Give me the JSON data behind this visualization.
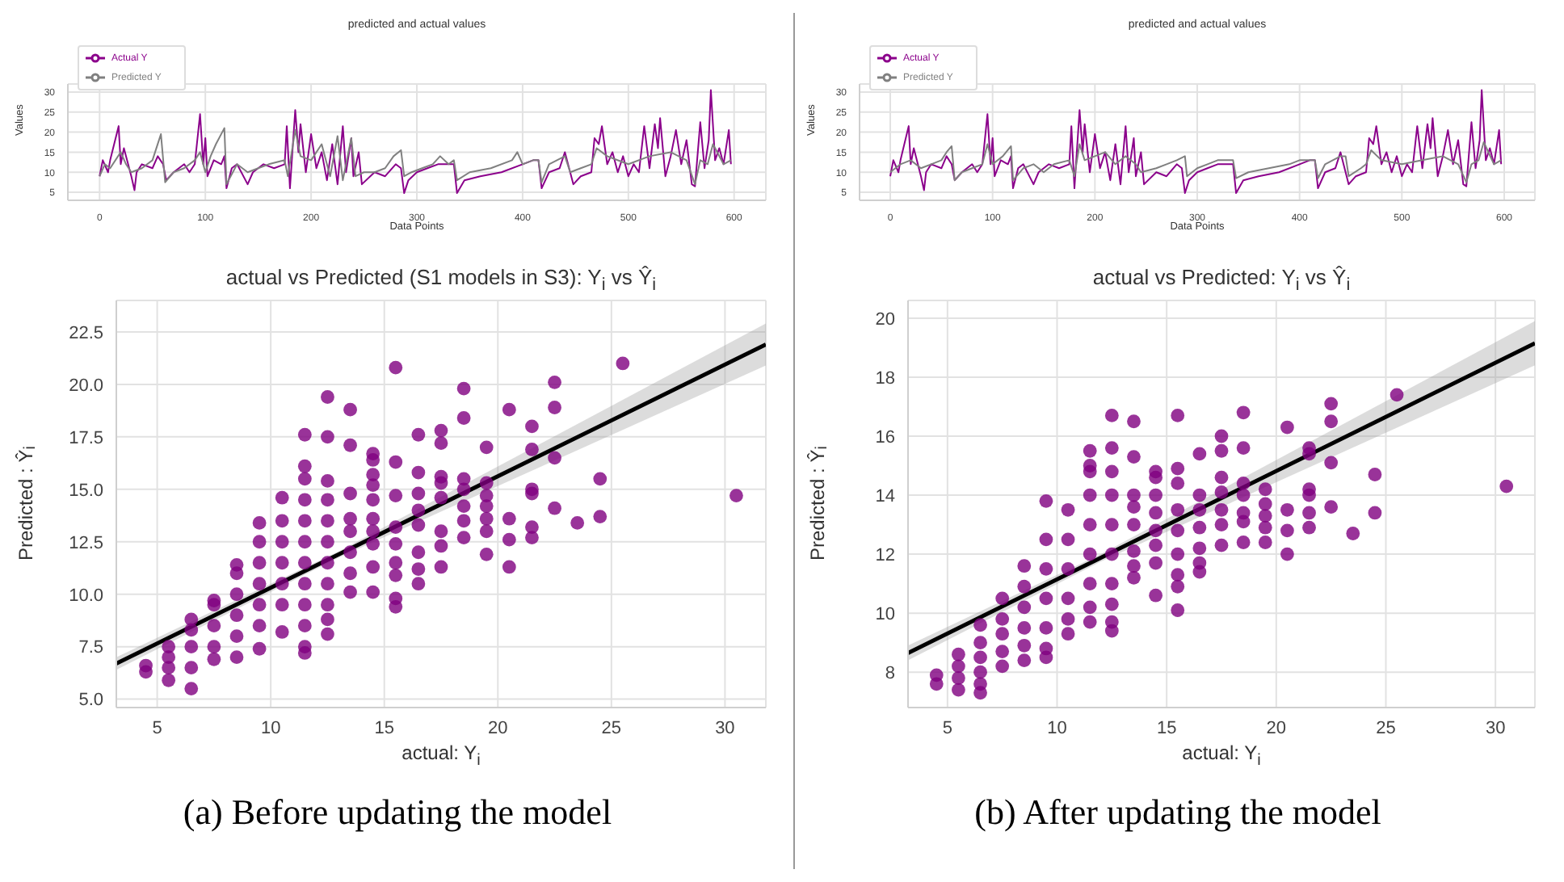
{
  "chart_data": [
    {
      "type": "line",
      "title": "predicted and actual values",
      "xlabel": "Data Points",
      "ylabel": "Values",
      "xlim": [
        -30,
        630
      ],
      "ylim": [
        3,
        32
      ],
      "xticks": [
        0,
        100,
        200,
        300,
        400,
        500,
        600
      ],
      "yticks": [
        5,
        10,
        15,
        20,
        25,
        30
      ],
      "grid": true,
      "legend": "top left",
      "series": [
        {
          "name": "Actual Y",
          "color": "#8b008b",
          "x": [
            0,
            3,
            8,
            10,
            18,
            20,
            23,
            30,
            33,
            35,
            40,
            50,
            55,
            60,
            63,
            70,
            80,
            85,
            90,
            95,
            98,
            100,
            102,
            108,
            115,
            118,
            120,
            125,
            130,
            140,
            145,
            155,
            165,
            175,
            177,
            180,
            185,
            188,
            190,
            195,
            200,
            205,
            210,
            215,
            220,
            225,
            230,
            233,
            238,
            240,
            245,
            248,
            260,
            270,
            280,
            285,
            288,
            292,
            300,
            310,
            320,
            330,
            335,
            338,
            345,
            360,
            380,
            400,
            410,
            415,
            418,
            425,
            435,
            440,
            448,
            455,
            465,
            468,
            472,
            475,
            480,
            485,
            490,
            495,
            500,
            505,
            510,
            515,
            520,
            525,
            528,
            530,
            535,
            540,
            545,
            550,
            555,
            560,
            563,
            568,
            572,
            576,
            578,
            582,
            586,
            590,
            595,
            597
          ],
          "values": [
            9,
            13,
            10,
            13,
            21.5,
            12,
            16,
            9,
            5.5,
            10,
            12,
            11,
            14,
            12,
            8,
            10,
            12,
            10,
            12,
            24.5,
            12,
            18.5,
            9,
            13,
            12,
            14,
            6,
            11,
            12,
            7,
            10,
            12,
            11,
            12,
            21.5,
            6,
            25.5,
            15,
            22,
            10,
            19.5,
            11,
            15,
            8,
            17,
            7,
            21.5,
            10,
            18.5,
            9,
            15,
            7,
            10,
            9,
            12,
            11,
            4.8,
            8,
            10,
            11,
            12,
            12,
            12,
            4.8,
            8,
            9,
            10,
            12,
            13,
            13,
            6,
            10,
            11,
            15,
            7,
            9,
            10,
            18.5,
            17,
            21.5,
            12,
            15,
            10,
            14,
            9,
            12,
            10,
            21.5,
            11,
            22,
            16,
            23.5,
            9,
            14,
            20.5,
            12,
            18,
            7,
            6.5,
            22.5,
            11,
            18,
            30.5,
            13,
            16,
            12,
            20.5,
            12
          ]
        },
        {
          "name": "Predicted Y",
          "color": "#808080",
          "x": [
            0,
            5,
            10,
            20,
            25,
            30,
            40,
            50,
            58,
            62,
            70,
            80,
            90,
            95,
            100,
            105,
            110,
            118,
            120,
            130,
            140,
            150,
            160,
            175,
            178,
            185,
            190,
            200,
            210,
            218,
            225,
            230,
            238,
            242,
            250,
            260,
            270,
            278,
            285,
            288,
            295,
            305,
            315,
            322,
            330,
            335,
            338,
            350,
            370,
            390,
            395,
            400,
            410,
            415,
            418,
            425,
            440,
            445,
            455,
            465,
            470,
            480,
            500,
            520,
            540,
            555,
            563,
            568,
            575,
            580,
            590,
            597
          ],
          "values": [
            9,
            12,
            11,
            15,
            12,
            10,
            11,
            13,
            19.5,
            7.5,
            10,
            11,
            13,
            15,
            10,
            14,
            17,
            21,
            7,
            12,
            10,
            11,
            12,
            13,
            9,
            20.5,
            14,
            13,
            17,
            9,
            19,
            8,
            18.5,
            9,
            10,
            10,
            11,
            14,
            15.5,
            9,
            10,
            11,
            12,
            14,
            12,
            13,
            8,
            10,
            11,
            13,
            15,
            12,
            13,
            13,
            7.5,
            12,
            14,
            10,
            11,
            12,
            16,
            14,
            12,
            14,
            15,
            13,
            7,
            13,
            12,
            17,
            12,
            13
          ]
        }
      ]
    },
    {
      "type": "line",
      "title": "predicted and actual values",
      "xlabel": "Data Points",
      "ylabel": "Values",
      "xlim": [
        -30,
        630
      ],
      "ylim": [
        3,
        32
      ],
      "xticks": [
        0,
        100,
        200,
        300,
        400,
        500,
        600
      ],
      "yticks": [
        5,
        10,
        15,
        20,
        25,
        30
      ],
      "grid": true,
      "legend": "top left",
      "series": [
        {
          "name": "Actual Y",
          "color": "#8b008b",
          "x": [
            0,
            3,
            8,
            10,
            18,
            20,
            23,
            30,
            33,
            35,
            40,
            50,
            55,
            60,
            63,
            70,
            80,
            85,
            90,
            95,
            98,
            100,
            102,
            108,
            115,
            118,
            120,
            125,
            130,
            140,
            145,
            155,
            165,
            175,
            177,
            180,
            185,
            188,
            190,
            195,
            200,
            205,
            210,
            215,
            220,
            225,
            230,
            233,
            238,
            240,
            245,
            248,
            260,
            270,
            280,
            285,
            288,
            292,
            300,
            310,
            320,
            330,
            335,
            338,
            345,
            360,
            380,
            400,
            410,
            415,
            418,
            425,
            435,
            440,
            448,
            455,
            465,
            468,
            472,
            475,
            480,
            485,
            490,
            495,
            500,
            505,
            510,
            515,
            520,
            525,
            528,
            530,
            535,
            540,
            545,
            550,
            555,
            560,
            563,
            568,
            572,
            576,
            578,
            582,
            586,
            590,
            595,
            597
          ],
          "values": [
            9,
            13,
            10,
            13,
            21.5,
            12,
            16,
            9,
            5.5,
            10,
            12,
            11,
            14,
            12,
            8,
            10,
            12,
            10,
            12,
            24.5,
            12,
            18.5,
            9,
            13,
            12,
            14,
            6,
            11,
            12,
            7,
            10,
            12,
            11,
            12,
            21.5,
            6,
            25.5,
            15,
            22,
            10,
            19.5,
            11,
            15,
            8,
            17,
            7,
            21.5,
            10,
            18.5,
            9,
            15,
            7,
            10,
            9,
            12,
            11,
            4.8,
            8,
            10,
            11,
            12,
            12,
            12,
            4.8,
            8,
            9,
            10,
            12,
            13,
            13,
            6,
            10,
            11,
            15,
            7,
            9,
            10,
            18.5,
            17,
            21.5,
            12,
            15,
            10,
            14,
            9,
            12,
            10,
            21.5,
            11,
            22,
            16,
            23.5,
            9,
            14,
            20.5,
            12,
            18,
            7,
            6.5,
            22.5,
            11,
            18,
            30.5,
            13,
            16,
            12,
            20.5,
            12
          ]
        },
        {
          "name": "Predicted Y",
          "color": "#808080",
          "x": [
            0,
            10,
            20,
            30,
            40,
            50,
            55,
            60,
            63,
            70,
            80,
            90,
            95,
            100,
            110,
            118,
            120,
            130,
            140,
            150,
            160,
            175,
            180,
            185,
            190,
            200,
            210,
            220,
            230,
            240,
            245,
            260,
            270,
            280,
            288,
            290,
            300,
            310,
            320,
            330,
            335,
            338,
            350,
            370,
            390,
            400,
            410,
            415,
            418,
            425,
            440,
            445,
            448,
            460,
            465,
            470,
            480,
            500,
            520,
            540,
            555,
            563,
            568,
            575,
            580,
            590,
            597
          ],
          "values": [
            10,
            12,
            13,
            11,
            12,
            13,
            15,
            16.5,
            8,
            10,
            11,
            12,
            17,
            12,
            14,
            16.5,
            8,
            11,
            12,
            10,
            12,
            13,
            9,
            17,
            13,
            14,
            15,
            12,
            14,
            12,
            10,
            11,
            12,
            13,
            14,
            9,
            11,
            12,
            13,
            13,
            13,
            8.5,
            10,
            11,
            12,
            13,
            13,
            13,
            8.5,
            12,
            14,
            14,
            9,
            11,
            12,
            15.5,
            13,
            12,
            13,
            14,
            12,
            7.5,
            12,
            13,
            17.5,
            12,
            13
          ]
        }
      ]
    },
    {
      "type": "scatter",
      "title": "actual vs Predicted (S1 models in S3): Y$_{i}$ vs Ŷ$_{i}$",
      "xlabel": "actual: Y$_{i}$",
      "ylabel": "Predicted : Ŷ$_{i}$",
      "xlim": [
        3.2,
        31.8
      ],
      "ylim": [
        4.6,
        24
      ],
      "xticks": [
        5,
        10,
        15,
        20,
        25,
        30
      ],
      "yticks": [
        {
          "value": 5,
          "label": "5.0"
        },
        {
          "value": 7.5,
          "label": "7.5"
        },
        {
          "value": 10,
          "label": "10.0"
        },
        {
          "value": 12.5,
          "label": "12.5"
        },
        {
          "value": 15,
          "label": "15.0"
        },
        {
          "value": 17.5,
          "label": "17.5"
        },
        {
          "value": 20,
          "label": "20.0"
        },
        {
          "value": 22.5,
          "label": "22.5"
        }
      ],
      "grid": true,
      "marker": "circle",
      "annotations": [
        "(a) Before updating the model"
      ],
      "series": [
        {
          "color": "#800080",
          "x": [
            4.5,
            4.5,
            5.5,
            5.5,
            5.5,
            5.5,
            6.5,
            6.5,
            6.5,
            6.5,
            6.5,
            7.5,
            7.5,
            7.5,
            7.5,
            7.5,
            8.5,
            8.5,
            8.5,
            8.5,
            8.5,
            8.5,
            9.5,
            9.5,
            9.5,
            9.5,
            9.5,
            9.5,
            9.5,
            10.5,
            10.5,
            10.5,
            10.5,
            10.5,
            10.5,
            10.5,
            11.5,
            11.5,
            11.5,
            11.5,
            11.5,
            11.5,
            11.5,
            11.5,
            11.5,
            11.5,
            11.5,
            11.5,
            12.5,
            12.5,
            12.5,
            12.5,
            12.5,
            12.5,
            12.5,
            12.5,
            12.5,
            12.5,
            12.5,
            13.5,
            13.5,
            13.5,
            13.5,
            13.5,
            13.5,
            13.5,
            13.5,
            14.5,
            14.5,
            14.5,
            14.5,
            14.5,
            14.5,
            14.5,
            14.5,
            14.5,
            14.5,
            15.5,
            15.5,
            15.5,
            15.5,
            15.5,
            15.5,
            15.5,
            15.5,
            15.5,
            16.5,
            16.5,
            16.5,
            16.5,
            16.5,
            16.5,
            16.5,
            16.5,
            17.5,
            17.5,
            17.5,
            17.5,
            17.5,
            17.5,
            17.5,
            17.5,
            18.5,
            18.5,
            18.5,
            18.5,
            18.5,
            18.5,
            18.5,
            19.5,
            19.5,
            19.5,
            19.5,
            19.5,
            19.5,
            19.5,
            20.5,
            20.5,
            20.5,
            20.5,
            21.5,
            21.5,
            21.5,
            21.5,
            21.5,
            21.5,
            22.5,
            22.5,
            22.5,
            22.5,
            23.5,
            24.5,
            24.5,
            25.5,
            30.5
          ],
          "values": [
            6.3,
            6.6,
            5.9,
            6.5,
            7,
            7.5,
            5.5,
            6.5,
            7.5,
            8.3,
            8.8,
            6.9,
            7.5,
            8.5,
            9.5,
            9.7,
            7,
            8,
            9,
            10,
            11,
            11.4,
            7.4,
            8.5,
            9.5,
            10.5,
            11.5,
            12.5,
            13.4,
            8.2,
            9.5,
            10.5,
            11.5,
            12.5,
            13.5,
            14.6,
            7.2,
            7.5,
            8.5,
            9.5,
            10.5,
            11.5,
            12.5,
            13.5,
            14.5,
            15.5,
            16.1,
            17.6,
            8.1,
            8.8,
            9.5,
            10.5,
            11.5,
            12.5,
            13.5,
            14.5,
            15.4,
            17.5,
            19.4,
            10.1,
            11,
            12,
            13,
            13.6,
            14.8,
            17.1,
            18.8,
            10.1,
            11.3,
            12.4,
            13,
            13.6,
            14.5,
            15.2,
            15.7,
            16.4,
            16.7,
            9.4,
            9.8,
            10.9,
            11.5,
            12.4,
            13.2,
            14.7,
            16.3,
            20.8,
            10.5,
            11.2,
            12,
            13.3,
            14,
            14.8,
            15.8,
            17.6,
            11.3,
            12.3,
            13,
            14.6,
            15.3,
            15.6,
            17.2,
            17.8,
            12.7,
            13.5,
            14.2,
            15,
            15.5,
            18.4,
            19.8,
            11.9,
            13,
            13.6,
            14.2,
            14.7,
            15.3,
            17,
            11.3,
            12.6,
            13.6,
            18.8,
            12.7,
            13.2,
            14.8,
            15,
            16.9,
            18,
            14.1,
            16.5,
            18.9,
            20.1,
            13.4,
            13.7,
            15.5,
            21,
            14.7
          ]
        },
        {
          "type": "line",
          "color": "#000000",
          "marker": "none",
          "x": [
            3.2,
            13,
            31.8
          ],
          "values": [
            6.7,
            11.9,
            21.9
          ],
          "lower": [
            6.4,
            11.75,
            20.9
          ],
          "upper": [
            7,
            12.05,
            22.9
          ]
        }
      ]
    },
    {
      "type": "scatter",
      "title": "actual vs Predicted: Y$_{i}$ vs Ŷ$_{i}$",
      "xlabel": "actual: Y$_{i}$",
      "ylabel": "Predicted : Ŷ$_{i}$",
      "xlim": [
        3.2,
        31.8
      ],
      "ylim": [
        6.8,
        20.6
      ],
      "xticks": [
        5,
        10,
        15,
        20,
        25,
        30
      ],
      "yticks": [
        8,
        10,
        12,
        14,
        16,
        18,
        20
      ],
      "grid": true,
      "marker": "circle",
      "annotations": [
        "(b) After updating the model"
      ],
      "series": [
        {
          "color": "#800080",
          "x": [
            4.5,
            4.5,
            5.5,
            5.5,
            5.5,
            5.5,
            6.5,
            6.5,
            6.5,
            6.5,
            6.5,
            6.5,
            7.5,
            7.5,
            7.5,
            7.5,
            7.5,
            8.5,
            8.5,
            8.5,
            8.5,
            8.5,
            8.5,
            9.5,
            9.5,
            9.5,
            9.5,
            9.5,
            9.5,
            9.5,
            10.5,
            10.5,
            10.5,
            10.5,
            10.5,
            10.5,
            11.5,
            11.5,
            11.5,
            11.5,
            11.5,
            11.5,
            11.5,
            11.5,
            11.5,
            12.5,
            12.5,
            12.5,
            12.5,
            12.5,
            12.5,
            12.5,
            12.5,
            12.5,
            12.5,
            13.5,
            13.5,
            13.5,
            13.5,
            13.5,
            13.5,
            13.5,
            13.5,
            14.5,
            14.5,
            14.5,
            14.5,
            14.5,
            14.5,
            14.5,
            14.5,
            15.5,
            15.5,
            15.5,
            15.5,
            15.5,
            15.5,
            15.5,
            15.5,
            15.5,
            16.5,
            16.5,
            16.5,
            16.5,
            16.5,
            16.5,
            16.5,
            17.5,
            17.5,
            17.5,
            17.5,
            17.5,
            17.5,
            17.5,
            18.5,
            18.5,
            18.5,
            18.5,
            18.5,
            18.5,
            18.5,
            19.5,
            19.5,
            19.5,
            19.5,
            19.5,
            20.5,
            20.5,
            20.5,
            20.5,
            21.5,
            21.5,
            21.5,
            21.5,
            21.5,
            21.5,
            22.5,
            22.5,
            22.5,
            22.5,
            23.5,
            24.5,
            24.5,
            25.5,
            30.5
          ],
          "values": [
            7.6,
            7.9,
            7.4,
            7.8,
            8.2,
            8.6,
            7.3,
            7.6,
            8,
            8.5,
            9,
            9.6,
            8.2,
            8.7,
            9.3,
            9.8,
            10.5,
            8.4,
            8.9,
            9.5,
            10.2,
            10.9,
            11.6,
            8.5,
            8.8,
            9.5,
            10.5,
            11.5,
            12.5,
            13.8,
            9.3,
            9.8,
            10.5,
            11.5,
            12.5,
            13.5,
            9.7,
            10.2,
            11,
            12,
            13,
            14,
            14.8,
            15,
            15.5,
            9.4,
            9.7,
            10.3,
            11,
            12,
            13,
            14,
            14.8,
            15.6,
            16.7,
            11.2,
            11.6,
            12.1,
            13,
            13.6,
            14,
            15.3,
            16.5,
            10.6,
            11.7,
            12.3,
            12.8,
            13.4,
            14,
            14.6,
            14.8,
            10.1,
            10.9,
            11.3,
            12,
            12.8,
            13.5,
            14.4,
            14.9,
            16.7,
            11.4,
            11.7,
            12.2,
            12.9,
            13.5,
            14,
            15.4,
            12.3,
            13,
            13.5,
            14.1,
            14.6,
            15.5,
            16,
            12.4,
            13.1,
            13.4,
            14,
            14.4,
            15.6,
            16.8,
            12.4,
            12.9,
            13.3,
            13.7,
            14.2,
            12,
            12.8,
            13.5,
            16.3,
            12.9,
            13.4,
            14,
            14.2,
            15.4,
            15.6,
            13.6,
            15.1,
            16.5,
            17.1,
            12.7,
            13.4,
            14.7,
            17.4,
            14.3
          ]
        },
        {
          "type": "line",
          "color": "#000000",
          "marker": "none",
          "x": [
            3.2,
            12,
            31.8
          ],
          "values": [
            8.65,
            11.88,
            19.15
          ],
          "lower": [
            8.4,
            11.75,
            18.4
          ],
          "upper": [
            8.9,
            12,
            19.9
          ]
        }
      ]
    }
  ]
}
